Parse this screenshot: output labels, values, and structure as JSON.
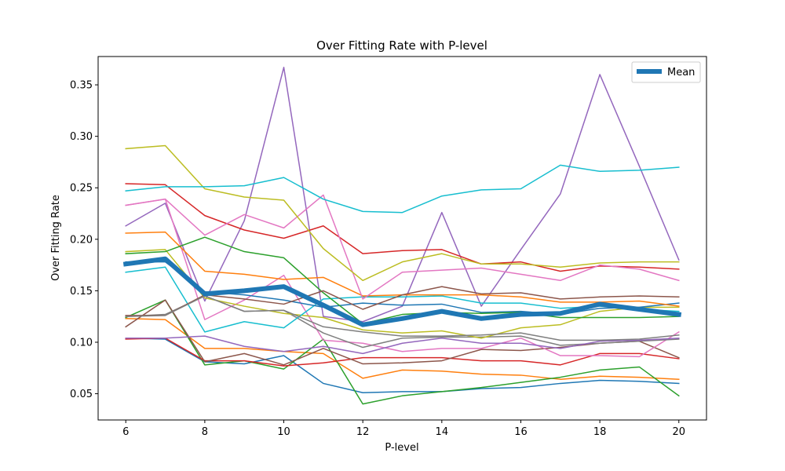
{
  "chart_data": {
    "type": "line",
    "title": "Over Fitting Rate with P-level",
    "xlabel": "P-level",
    "ylabel": "Over Fitting Rate",
    "x": [
      6,
      7,
      8,
      9,
      10,
      11,
      12,
      13,
      14,
      15,
      16,
      17,
      18,
      19,
      20
    ],
    "xlim": [
      5.3,
      20.7
    ],
    "ylim": [
      0.0245,
      0.3775
    ],
    "xticks": [
      6,
      8,
      10,
      12,
      14,
      16,
      18,
      20
    ],
    "yticks": [
      0.05,
      0.1,
      0.15,
      0.2,
      0.25,
      0.3,
      0.35
    ],
    "ytick_labels": [
      "0.05",
      "0.10",
      "0.15",
      "0.20",
      "0.25",
      "0.30",
      "0.35"
    ],
    "legend": {
      "position": "upper-right",
      "entries": [
        "Mean"
      ]
    },
    "colors": {
      "blue": "#1f77b4",
      "orange": "#ff7f0e",
      "green": "#2ca02c",
      "red": "#d62728",
      "purple": "#9467bd",
      "brown": "#8c564b",
      "pink": "#e377c2",
      "gray": "#7f7f7f",
      "olive": "#bcbd22",
      "cyan": "#17becf"
    },
    "series": [
      {
        "color": "#1f77b4",
        "values": [
          0.104,
          0.103,
          0.081,
          0.079,
          0.087,
          0.06,
          0.051,
          0.052,
          0.052,
          0.055,
          0.056,
          0.06,
          0.063,
          0.062,
          0.06
        ]
      },
      {
        "color": "#ff7f0e",
        "values": [
          0.123,
          0.122,
          0.094,
          0.094,
          0.091,
          0.089,
          0.065,
          0.073,
          0.072,
          0.069,
          0.068,
          0.064,
          0.067,
          0.066,
          0.064
        ]
      },
      {
        "color": "#2ca02c",
        "values": [
          0.124,
          0.141,
          0.078,
          0.082,
          0.074,
          0.103,
          0.04,
          0.048,
          0.052,
          0.056,
          0.061,
          0.066,
          0.073,
          0.076,
          0.048
        ]
      },
      {
        "color": "#d62728",
        "values": [
          0.103,
          0.104,
          0.082,
          0.082,
          0.077,
          0.08,
          0.085,
          0.085,
          0.085,
          0.082,
          0.082,
          0.078,
          0.089,
          0.089,
          0.084
        ]
      },
      {
        "color": "#9467bd",
        "values": [
          0.213,
          0.235,
          0.14,
          0.218,
          0.367,
          0.125,
          0.12,
          0.135,
          0.226,
          0.135,
          0.19,
          0.244,
          0.36,
          0.271,
          0.18
        ]
      },
      {
        "color": "#8c564b",
        "values": [
          0.115,
          0.141,
          0.081,
          0.089,
          0.078,
          0.094,
          0.079,
          0.08,
          0.082,
          0.093,
          0.092,
          0.095,
          0.099,
          0.101,
          0.085
        ]
      },
      {
        "color": "#e377c2",
        "values": [
          0.233,
          0.239,
          0.122,
          0.141,
          0.165,
          0.102,
          0.099,
          0.091,
          0.094,
          0.094,
          0.104,
          0.087,
          0.087,
          0.086,
          0.11
        ]
      },
      {
        "color": "#7f7f7f",
        "values": [
          0.125,
          0.127,
          0.145,
          0.13,
          0.131,
          0.109,
          0.095,
          0.104,
          0.105,
          0.105,
          0.106,
          0.097,
          0.099,
          0.101,
          0.103
        ]
      },
      {
        "color": "#bcbd22",
        "values": [
          0.188,
          0.19,
          0.143,
          0.135,
          0.128,
          0.124,
          0.112,
          0.109,
          0.111,
          0.104,
          0.114,
          0.117,
          0.13,
          0.134,
          0.134
        ]
      },
      {
        "color": "#17becf",
        "values": [
          0.168,
          0.173,
          0.11,
          0.12,
          0.114,
          0.142,
          0.144,
          0.144,
          0.145,
          0.138,
          0.138,
          0.133,
          0.135,
          0.132,
          0.13
        ]
      },
      {
        "color": "#1f77b4",
        "values": [
          0.178,
          0.178,
          0.149,
          0.146,
          0.141,
          0.134,
          0.138,
          0.136,
          0.137,
          0.129,
          0.13,
          0.127,
          0.133,
          0.134,
          0.138
        ]
      },
      {
        "color": "#ff7f0e",
        "values": [
          0.206,
          0.207,
          0.169,
          0.166,
          0.161,
          0.163,
          0.145,
          0.146,
          0.146,
          0.146,
          0.144,
          0.139,
          0.139,
          0.14,
          0.135
        ]
      },
      {
        "color": "#2ca02c",
        "values": [
          0.186,
          0.188,
          0.202,
          0.188,
          0.182,
          0.148,
          0.118,
          0.127,
          0.129,
          0.128,
          0.129,
          0.124,
          0.124,
          0.124,
          0.125
        ]
      },
      {
        "color": "#d62728",
        "values": [
          0.254,
          0.253,
          0.223,
          0.209,
          0.201,
          0.213,
          0.186,
          0.189,
          0.19,
          0.176,
          0.178,
          0.169,
          0.174,
          0.173,
          0.171
        ]
      },
      {
        "color": "#9467bd",
        "values": [
          0.104,
          0.104,
          0.106,
          0.096,
          0.091,
          0.096,
          0.089,
          0.099,
          0.104,
          0.099,
          0.099,
          0.094,
          0.101,
          0.102,
          0.104
        ]
      },
      {
        "color": "#8c564b",
        "values": [
          0.126,
          0.126,
          0.146,
          0.142,
          0.137,
          0.15,
          0.132,
          0.146,
          0.154,
          0.147,
          0.148,
          0.142,
          0.144,
          0.145,
          0.144
        ]
      },
      {
        "color": "#e377c2",
        "values": [
          0.233,
          0.239,
          0.204,
          0.224,
          0.211,
          0.243,
          0.142,
          0.168,
          0.17,
          0.172,
          0.166,
          0.16,
          0.175,
          0.171,
          0.16
        ]
      },
      {
        "color": "#7f7f7f",
        "values": [
          0.125,
          0.126,
          0.145,
          0.13,
          0.131,
          0.115,
          0.11,
          0.106,
          0.106,
          0.107,
          0.109,
          0.102,
          0.102,
          0.103,
          0.107
        ]
      },
      {
        "color": "#bcbd22",
        "values": [
          0.288,
          0.291,
          0.249,
          0.241,
          0.238,
          0.191,
          0.16,
          0.178,
          0.186,
          0.176,
          0.176,
          0.173,
          0.177,
          0.178,
          0.178
        ]
      },
      {
        "color": "#17becf",
        "values": [
          0.247,
          0.251,
          0.251,
          0.252,
          0.26,
          0.239,
          0.227,
          0.226,
          0.242,
          0.248,
          0.249,
          0.272,
          0.266,
          0.267,
          0.27
        ]
      },
      {
        "name": "Mean",
        "color": "#1f77b4",
        "thick": true,
        "values": [
          0.176,
          0.181,
          0.147,
          0.15,
          0.154,
          0.136,
          0.117,
          0.123,
          0.13,
          0.123,
          0.127,
          0.128,
          0.137,
          0.132,
          0.127
        ]
      }
    ]
  }
}
